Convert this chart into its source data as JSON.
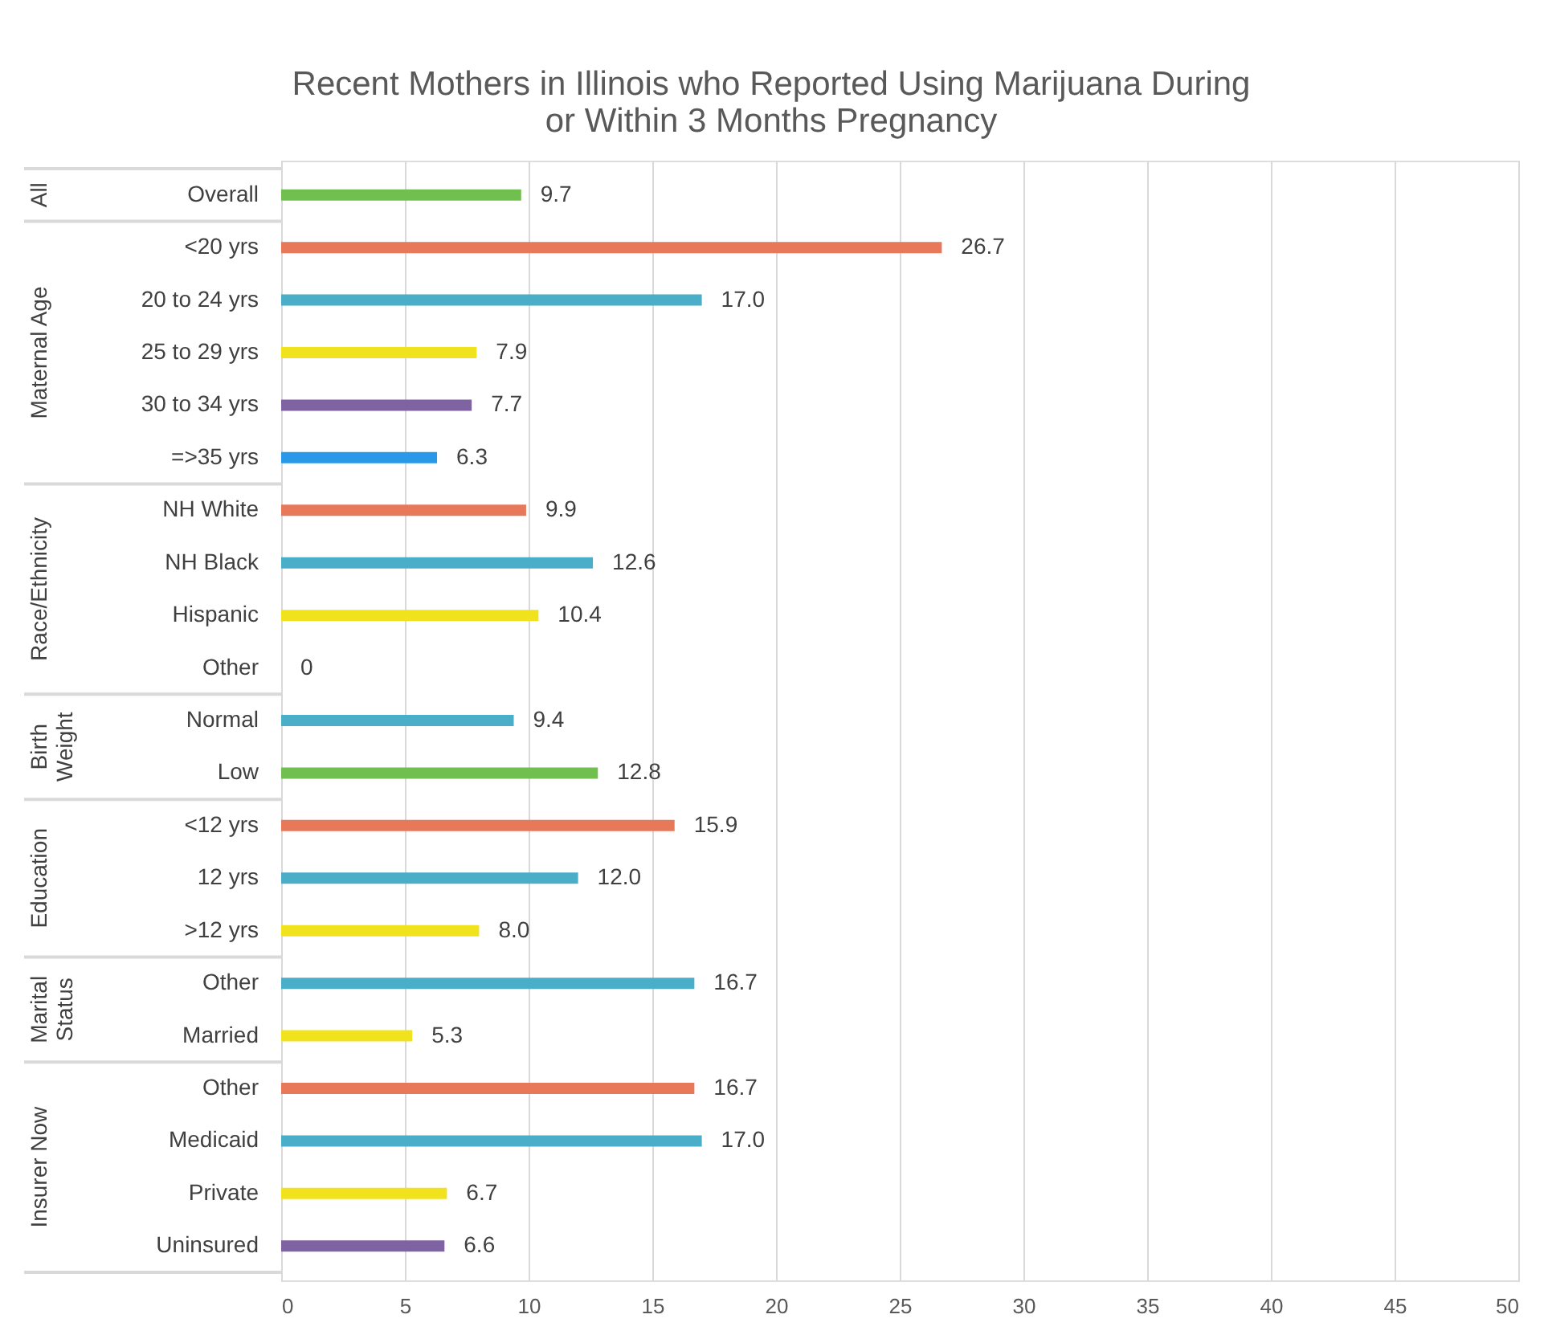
{
  "chart_data": {
    "type": "bar",
    "orientation": "horizontal",
    "title": "Recent Mothers in Illinois who Reported Using Marijuana During\nor Within 3 Months Pregnancy",
    "categories": [
      "Overall",
      "<20 yrs",
      "20 to 24 yrs",
      "25 to 29 yrs",
      "30 to 34 yrs",
      "=>35 yrs",
      "NH White",
      "NH Black",
      "Hispanic",
      "Other",
      "Normal",
      "Low",
      "<12 yrs",
      "12 yrs",
      ">12 yrs",
      "Other",
      "Married",
      "Other",
      "Medicaid",
      "Private",
      "Uninsured"
    ],
    "values": [
      9.7,
      26.7,
      17.0,
      7.9,
      7.7,
      6.3,
      9.9,
      12.6,
      10.4,
      0,
      9.4,
      12.8,
      15.9,
      12.0,
      8.0,
      16.7,
      5.3,
      16.7,
      17.0,
      6.7,
      6.6
    ],
    "value_labels": [
      "9.7",
      "26.7",
      "17.0",
      "7.9",
      "7.7",
      "6.3",
      "9.9",
      "12.6",
      "10.4",
      "0",
      "9.4",
      "12.8",
      "15.9",
      "12.0",
      "8.0",
      "16.7",
      "5.3",
      "16.7",
      "17.0",
      "6.7",
      "6.6"
    ],
    "colors": [
      "#70bf4f",
      "#e8785a",
      "#4aaec8",
      "#f0e31e",
      "#7f62a2",
      "#2a98e8",
      "#e8785a",
      "#4aaec8",
      "#f0e31e",
      "#e8785a",
      "#4aaec8",
      "#70bf4f",
      "#e8785a",
      "#4aaec8",
      "#f0e31e",
      "#4aaec8",
      "#f0e31e",
      "#e8785a",
      "#4aaec8",
      "#f0e31e",
      "#7f62a2"
    ],
    "annotations": [
      "All",
      "Maternal Age",
      "Race/Ethnicity",
      "Birth\nWeight",
      "Education",
      "Marital\nStatus",
      "Insurer Now"
    ],
    "xlim": [
      0,
      50
    ],
    "xticks": [
      0,
      5,
      10,
      15,
      20,
      25,
      30,
      35,
      40,
      45,
      50
    ],
    "grid": "x"
  }
}
